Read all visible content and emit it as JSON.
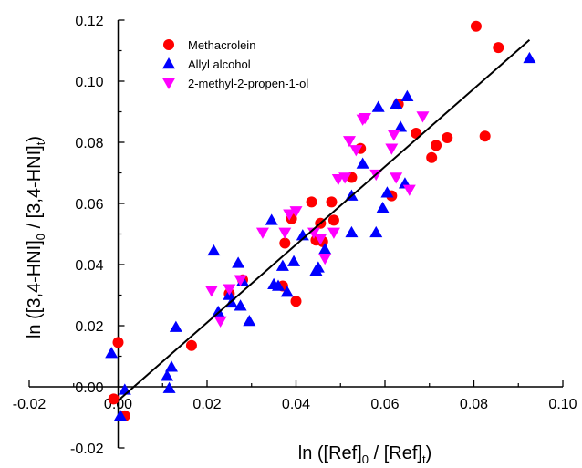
{
  "chart_data": {
    "type": "scatter",
    "xlabel": {
      "pre": "ln ([Ref]",
      "sub1": "0",
      "mid": " / [Ref]",
      "sub2": "t",
      "post": ")"
    },
    "ylabel": {
      "pre": "ln ([3,4-HNI]",
      "sub1": "0",
      "mid": " / [3,4-HNI]",
      "sub2": "t",
      "post": ")"
    },
    "xlim": [
      -0.02,
      0.1
    ],
    "ylim": [
      -0.02,
      0.12
    ],
    "x_ticks": [
      -0.02,
      0.0,
      0.02,
      0.04,
      0.06,
      0.08,
      0.1
    ],
    "x_tick_labels": [
      "-0.02",
      "0.00",
      "0.02",
      "0.04",
      "0.06",
      "0.08",
      "0.10"
    ],
    "y_ticks": [
      -0.02,
      0.0,
      0.02,
      0.04,
      0.06,
      0.08,
      0.1,
      0.12
    ],
    "y_tick_labels": [
      "-0.02",
      "0.00",
      "0.02",
      "0.04",
      "0.06",
      "0.08",
      "0.10",
      "0.12"
    ],
    "legend_position": "top-left",
    "series": [
      {
        "name": "Methacrolein",
        "marker": "circle",
        "color": "#ff0000",
        "points": [
          [
            -0.001,
            -0.004
          ],
          [
            0.0,
            0.0145
          ],
          [
            0.0015,
            -0.0095
          ],
          [
            0.0165,
            0.0135
          ],
          [
            0.025,
            0.0305
          ],
          [
            0.028,
            0.035
          ],
          [
            0.037,
            0.033
          ],
          [
            0.0375,
            0.047
          ],
          [
            0.039,
            0.055
          ],
          [
            0.04,
            0.028
          ],
          [
            0.0435,
            0.0605
          ],
          [
            0.0445,
            0.048
          ],
          [
            0.0455,
            0.0535
          ],
          [
            0.046,
            0.0475
          ],
          [
            0.048,
            0.0605
          ],
          [
            0.0485,
            0.0545
          ],
          [
            0.0525,
            0.0685
          ],
          [
            0.0545,
            0.078
          ],
          [
            0.0615,
            0.0625
          ],
          [
            0.063,
            0.0925
          ],
          [
            0.067,
            0.083
          ],
          [
            0.0705,
            0.075
          ],
          [
            0.0715,
            0.079
          ],
          [
            0.074,
            0.0815
          ],
          [
            0.0805,
            0.118
          ],
          [
            0.0825,
            0.082
          ],
          [
            0.0855,
            0.111
          ]
        ]
      },
      {
        "name": "Allyl alcohol",
        "marker": "triangle-up",
        "color": "#0000ff",
        "points": [
          [
            -0.0015,
            0.011
          ],
          [
            0.0005,
            -0.0095
          ],
          [
            0.0015,
            -0.001
          ],
          [
            0.011,
            0.0035
          ],
          [
            0.0115,
            -0.0005
          ],
          [
            0.012,
            0.0065
          ],
          [
            0.013,
            0.0195
          ],
          [
            0.0215,
            0.0445
          ],
          [
            0.0225,
            0.0245
          ],
          [
            0.025,
            0.03
          ],
          [
            0.0255,
            0.0275
          ],
          [
            0.027,
            0.0405
          ],
          [
            0.0275,
            0.0265
          ],
          [
            0.028,
            0.0345
          ],
          [
            0.0295,
            0.0215
          ],
          [
            0.0345,
            0.0545
          ],
          [
            0.035,
            0.0335
          ],
          [
            0.036,
            0.033
          ],
          [
            0.037,
            0.0395
          ],
          [
            0.038,
            0.031
          ],
          [
            0.0395,
            0.041
          ],
          [
            0.0415,
            0.0495
          ],
          [
            0.0445,
            0.038
          ],
          [
            0.045,
            0.039
          ],
          [
            0.0465,
            0.045
          ],
          [
            0.0525,
            0.0625
          ],
          [
            0.0525,
            0.0505
          ],
          [
            0.055,
            0.073
          ],
          [
            0.058,
            0.0505
          ],
          [
            0.0585,
            0.0915
          ],
          [
            0.0595,
            0.0585
          ],
          [
            0.0605,
            0.0635
          ],
          [
            0.0625,
            0.0925
          ],
          [
            0.0635,
            0.085
          ],
          [
            0.0645,
            0.0665
          ],
          [
            0.065,
            0.095
          ],
          [
            0.0925,
            0.1075
          ]
        ]
      },
      {
        "name": "2-methyl-2-propen-1-ol",
        "marker": "triangle-down",
        "color": "#ff00ff",
        "points": [
          [
            0.021,
            0.0315
          ],
          [
            0.023,
            0.0215
          ],
          [
            0.025,
            0.032
          ],
          [
            0.0275,
            0.035
          ],
          [
            0.0325,
            0.0505
          ],
          [
            0.0375,
            0.0505
          ],
          [
            0.0385,
            0.0565
          ],
          [
            0.04,
            0.0575
          ],
          [
            0.044,
            0.0505
          ],
          [
            0.0455,
            0.0485
          ],
          [
            0.0465,
            0.042
          ],
          [
            0.0485,
            0.0505
          ],
          [
            0.0495,
            0.068
          ],
          [
            0.051,
            0.0685
          ],
          [
            0.052,
            0.0805
          ],
          [
            0.0535,
            0.0775
          ],
          [
            0.055,
            0.0875
          ],
          [
            0.0555,
            0.088
          ],
          [
            0.058,
            0.0695
          ],
          [
            0.0615,
            0.078
          ],
          [
            0.062,
            0.0825
          ],
          [
            0.0625,
            0.0685
          ],
          [
            0.0655,
            0.0645
          ],
          [
            0.0685,
            0.0885
          ]
        ]
      }
    ],
    "fit_line": {
      "x": [
        0.0,
        0.0925
      ],
      "y": [
        -0.0045,
        0.1135
      ],
      "color": "#000000"
    }
  }
}
